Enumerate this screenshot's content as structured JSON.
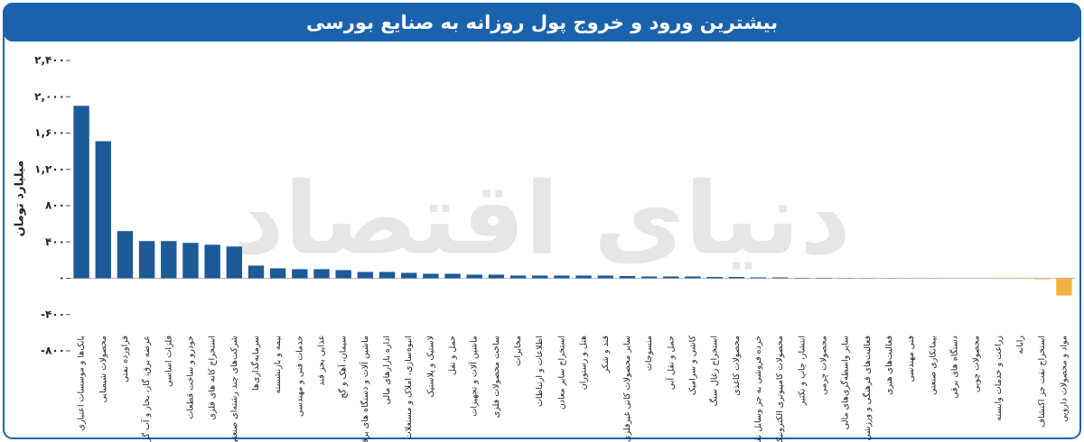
{
  "chart_data": {
    "type": "bar",
    "title": "بیشترین ورود و خروج پول روزانه به صنایع بورسی",
    "y_label": "میلیارد تومان",
    "watermark": "دنیای اقتصاد",
    "categories": [
      "بانک‌ها و موسسات اعتباری",
      "محصولات شیمیایی",
      "فراورده نفتی",
      "عرضه برق، گاز، بخار و آب گرم",
      "فلزات اساسی",
      "خودرو و ساخت قطعات",
      "استخراج کانه های فلزی",
      "شرکت‌های چند رشته‌ای صنعتی",
      "سرمایه‌گذاری‌ها",
      "بیمه و بازنشسته",
      "خدمات فنی و مهندسی",
      "غذایی بجز قند",
      "سیمان، آهک و گچ",
      "ماشین آلات و دستگاه های برقی",
      "اداره بازارهای مالی",
      "انبوه‌سازی، املاک و مستغلات",
      "لاستیک و پلاستیک",
      "حمل و نقل",
      "ماشین آلات و تجهیزات",
      "ساخت محصولات فلزی",
      "مخابرات",
      "اطلاعات و ارتباطات",
      "استخراج سایر معادن",
      "هتل و رستوران",
      "قند و شکر",
      "سایر محصولات کانی غیرفلزی",
      "منسوجات",
      "حمل و نقل آبی",
      "کاشی و سرامیک",
      "استخراج زغال سنگ",
      "محصولات کاغذی",
      "خرده فروشی به جز وسایل نقلیه",
      "محصولات کامپیوتری الکترونیکی",
      "انتشار، چاپ و تکثیر",
      "محصولات چرمی",
      "سایر واسطه‌گری‌های مالی",
      "فعالیت‌های فرهنگی و ورزشی",
      "فعالیت‌های هنری",
      "فنی مهندسی",
      "بیمانکاری صنعتی",
      "دستگاه های برقی",
      "محصولات چوبی",
      "زراعت و خدمات وابسته",
      "رایانه",
      "استخراج نفت جز اکتشاف",
      "مواد و محصولات دارویی"
    ],
    "values": [
      1900,
      1510,
      520,
      410,
      410,
      390,
      370,
      350,
      140,
      110,
      100,
      100,
      90,
      70,
      70,
      60,
      50,
      50,
      40,
      40,
      30,
      30,
      30,
      30,
      30,
      25,
      20,
      20,
      20,
      15,
      15,
      10,
      10,
      5,
      5,
      3,
      2,
      2,
      1,
      1,
      0,
      -1,
      -3,
      -5,
      -10,
      -190
    ],
    "color": "#1d5a98",
    "negative_color": "#f0b23a",
    "ylim": [
      -800,
      2400
    ],
    "yticks": [
      {
        "value": -800,
        "label": "-۸۰۰"
      },
      {
        "value": -400,
        "label": "-۴۰۰"
      },
      {
        "value": 0,
        "label": "۰"
      },
      {
        "value": 400,
        "label": "۴۰۰"
      },
      {
        "value": 800,
        "label": "۸۰۰"
      },
      {
        "value": 1200,
        "label": "۱,۲۰۰"
      },
      {
        "value": 1600,
        "label": "۱,۶۰۰"
      },
      {
        "value": 2000,
        "label": "۲,۰۰۰"
      },
      {
        "value": 2400,
        "label": "۲,۴۰۰"
      }
    ],
    "grid": false
  }
}
